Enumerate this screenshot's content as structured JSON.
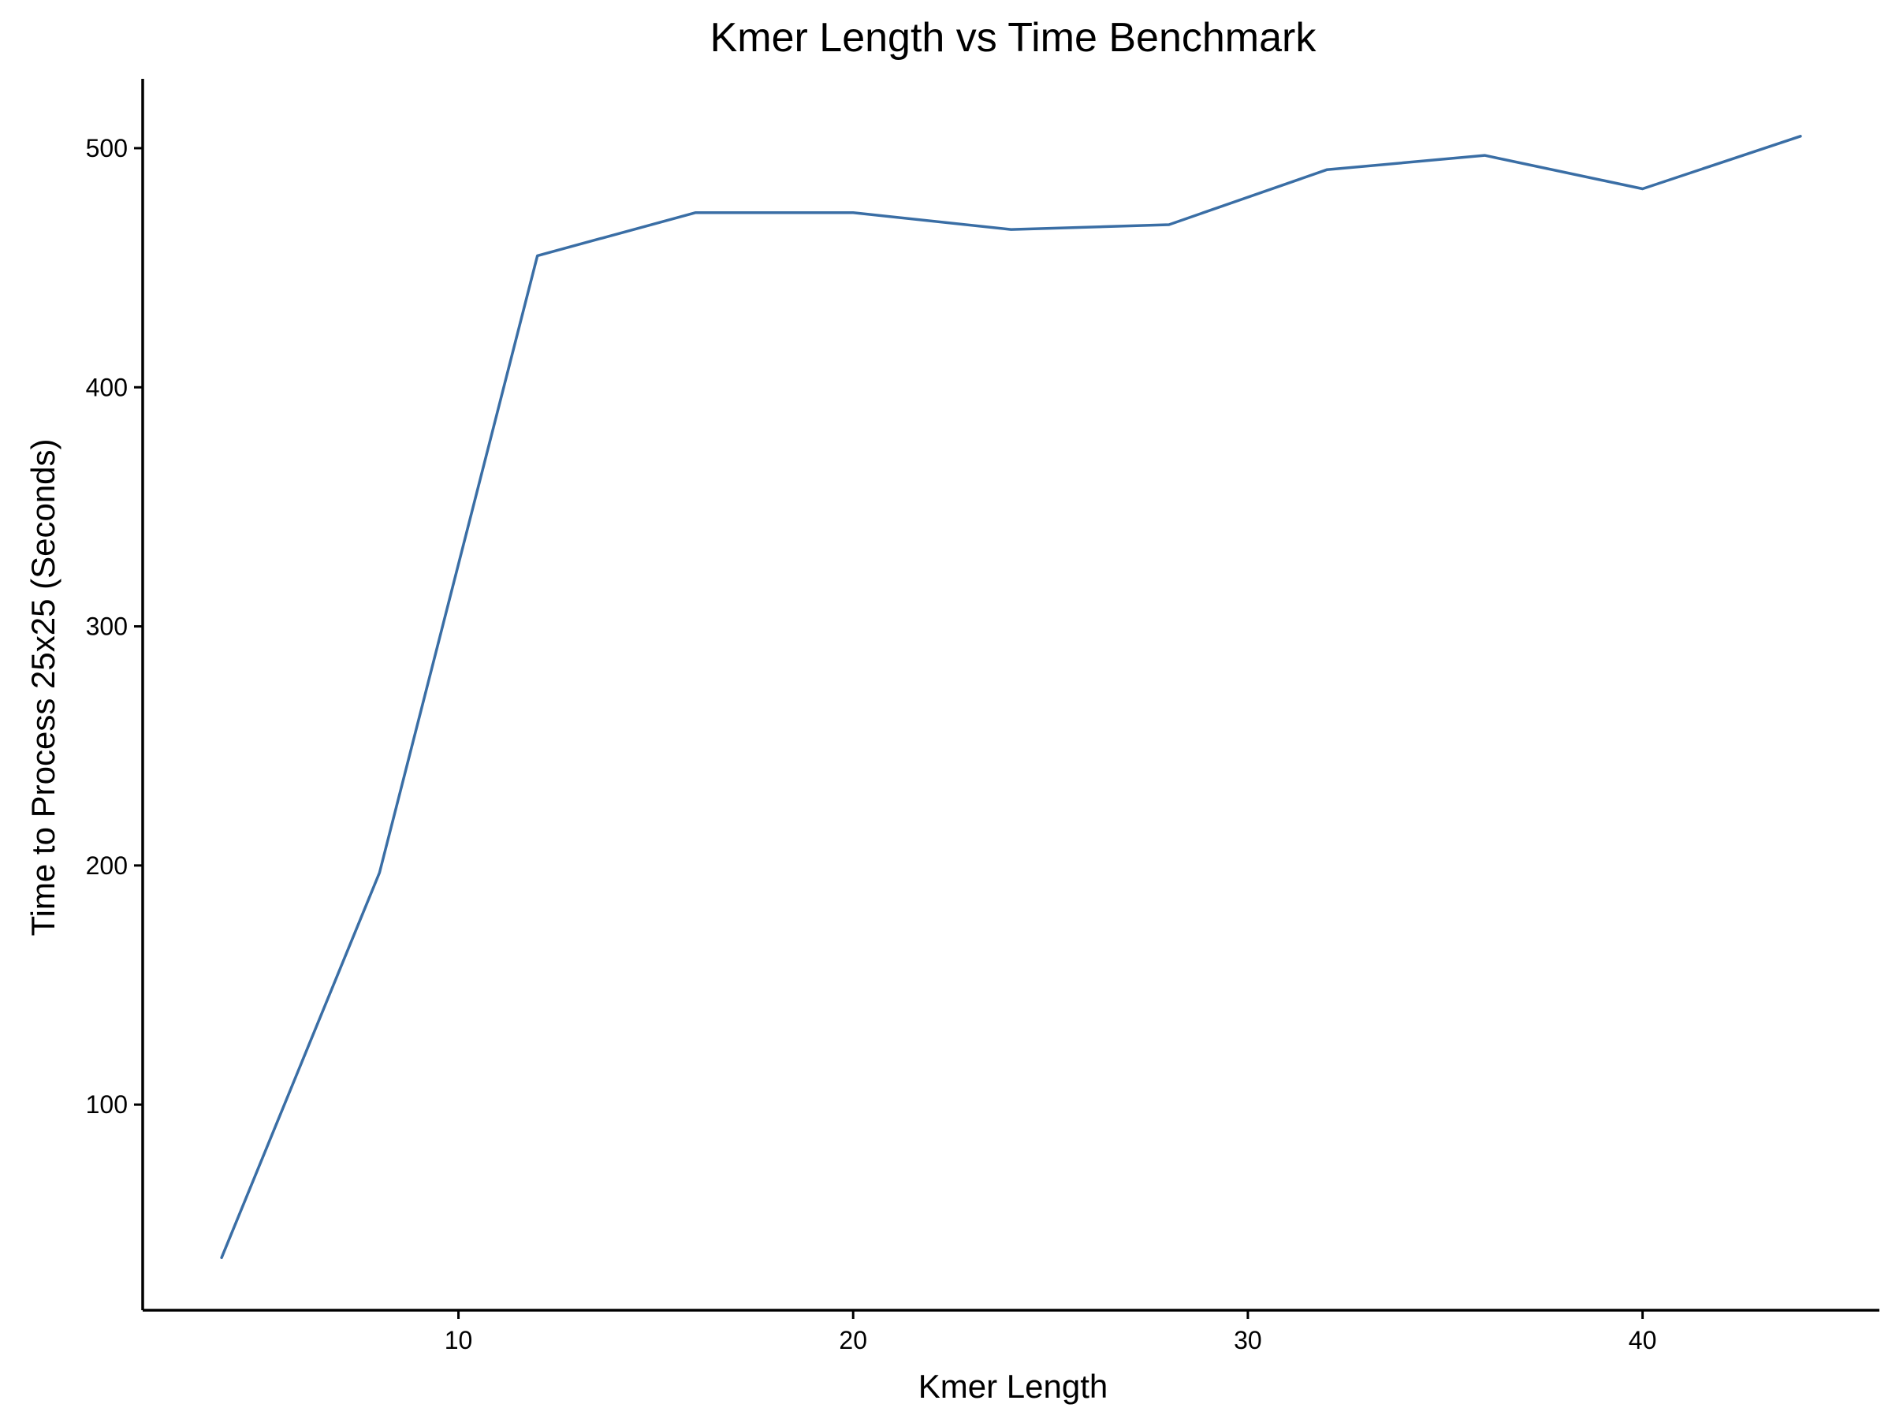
{
  "chart_data": {
    "type": "line",
    "title": "Kmer Length vs Time Benchmark",
    "xlabel": "Kmer Length",
    "ylabel": "Time to Process 25x25 (Seconds)",
    "xlim": [
      2,
      46
    ],
    "ylim": [
      14,
      529
    ],
    "x_ticks": [
      10,
      20,
      30,
      40
    ],
    "y_ticks": [
      100,
      200,
      300,
      400,
      500
    ],
    "grid": false,
    "legend": "none",
    "series": [
      {
        "color": "#3a6ea5",
        "x": [
          4,
          8,
          12,
          16,
          20,
          24,
          28,
          32,
          36,
          40,
          44
        ],
        "y": [
          36,
          197,
          455,
          473,
          473,
          466,
          468,
          491,
          497,
          483,
          505
        ]
      }
    ]
  }
}
